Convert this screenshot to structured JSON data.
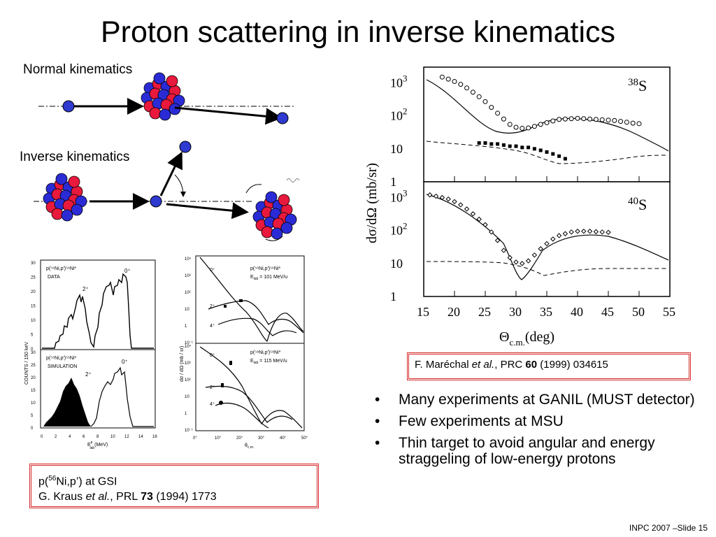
{
  "slide": {
    "title": "Proton scattering in inverse kinematics",
    "footer": "INPC 2007 –Slide 15"
  },
  "kinematics": {
    "normal_label": "Normal kinematics",
    "inverse_label": "Inverse kinematics",
    "colors": {
      "proton": "#e8193c",
      "neutron": "#2b2bd6",
      "projectile": "#2f3ad0"
    }
  },
  "gsi_figure": {
    "spectrum_top": {
      "reaction": "p(⁵⁶Ni,p′)⁵⁶Ni*",
      "tag": "DATA",
      "peaks": [
        "0⁺",
        "2⁺"
      ]
    },
    "spectrum_bottom": {
      "reaction": "p(⁵⁶Ni,p′)⁵⁶Ni*",
      "tag": "SIMULATION",
      "peaks": [
        "0⁺",
        "2⁺"
      ]
    },
    "y_label": "COUNTS / 150 keV",
    "x_label": "E",
    "x_label_sup": "p",
    "x_label_sub": "lab",
    "x_label_unit": "(MeV)",
    "y_ticks": [
      "30",
      "25",
      "20",
      "15",
      "10",
      "5",
      "0"
    ],
    "x_ticks": [
      "0",
      "2",
      "4",
      "6",
      "8",
      "10",
      "12",
      "14",
      "16"
    ],
    "ang_top": {
      "reaction": "p(⁵⁶Ni,p′)⁵⁶Ni*",
      "energy": "E",
      "energy_sub": "lab",
      "energy_val": " = 101 MeV/u",
      "states": [
        "0⁺",
        "2⁺",
        "4⁺"
      ]
    },
    "ang_bottom": {
      "reaction": "p(⁵⁸Ni,p′)⁵⁸Ni*",
      "energy": "E",
      "energy_sub": "lab",
      "energy_val": " = 115 MeV/u",
      "states": [
        "0⁺",
        "2⁺",
        "4⁺"
      ]
    },
    "ang_y_label": "dσ / dΩ  (mb / sr)",
    "ang_y_ticks": [
      "10⁴",
      "10³",
      "10²",
      "10",
      "1",
      "10⁻¹"
    ],
    "ang_x_ticks": [
      "0°",
      "10°",
      "20°",
      "30°",
      "40°",
      "50°"
    ],
    "ang_x_label": "θ",
    "ang_x_label_sub": "c.m."
  },
  "ganil_figure": {
    "panel_top_mass": "38",
    "panel_top_elem": "S",
    "panel_bottom_mass": "40",
    "panel_bottom_elem": "S",
    "y_label": "dσ/dΩ (mb/sr)",
    "y_ticks": [
      {
        "base": "10",
        "sup": "3"
      },
      {
        "base": "10",
        "sup": "2"
      },
      {
        "base": "10",
        "sup": ""
      },
      {
        "base": "1",
        "sup": ""
      }
    ],
    "x_ticks": [
      "15",
      "20",
      "25",
      "30",
      "35",
      "40",
      "45",
      "50",
      "55"
    ],
    "x_label": "Θ",
    "x_label_sub": "c.m.",
    "x_label_unit": "(deg)"
  },
  "refs": {
    "ganil": {
      "author": "F. Maréchal ",
      "etal": "et al.",
      "journal": ", PRC  ",
      "volume": "60",
      "rest": " (1999) 034615"
    },
    "gsi": {
      "line1_pre": "p(",
      "line1_sup": "56",
      "line1_post": "Ni,p’) at GSI",
      "author": "G. Kraus ",
      "etal": "et al.",
      "journal": ", PRL  ",
      "volume": "73",
      "rest": " (1994) 1773"
    }
  },
  "bullets": [
    "Many experiments at GANIL (MUST detector)",
    "Few experiments at MSU",
    "Thin target to avoid angular and energy straggeling of low-energy protons"
  ],
  "chart_data": [
    {
      "type": "scatter",
      "title": "38S",
      "xlabel": "Θc.m. (deg)",
      "ylabel": "dσ/dΩ (mb/sr)",
      "xlim": [
        15,
        55
      ],
      "ylim": [
        1,
        3000
      ],
      "log_y": true,
      "series": [
        {
          "x": [
            18,
            19,
            20,
            21,
            22,
            23,
            24,
            25,
            26,
            27,
            28,
            29,
            30,
            31,
            32,
            33,
            34,
            35,
            36,
            37,
            38,
            39,
            40,
            41,
            42,
            43,
            44,
            45,
            46,
            47,
            48,
            49,
            50
          ],
          "y": [
            1500,
            1300,
            1100,
            900,
            700,
            520,
            380,
            270,
            180,
            120,
            80,
            55,
            45,
            42,
            43,
            48,
            55,
            62,
            70,
            78,
            80,
            82,
            84,
            82,
            80,
            78,
            76,
            74,
            72,
            68,
            64,
            60,
            58
          ]
        },
        {
          "x": [
            24,
            25,
            26,
            27,
            28,
            29,
            30,
            31,
            32,
            33,
            34,
            35,
            36,
            37,
            38
          ],
          "y": [
            15,
            15,
            14,
            14,
            13,
            12,
            12,
            11,
            11,
            10,
            9,
            8,
            7,
            6,
            5
          ]
        }
      ]
    },
    {
      "type": "scatter",
      "title": "40S",
      "xlabel": "Θc.m. (deg)",
      "ylabel": "dσ/dΩ (mb/sr)",
      "xlim": [
        15,
        55
      ],
      "ylim": [
        1,
        3000
      ],
      "log_y": true,
      "series": [
        {
          "x": [
            16,
            17,
            18,
            19,
            20,
            21,
            22,
            23,
            24,
            25,
            26,
            27,
            28,
            29,
            30,
            31,
            32,
            33,
            34,
            35,
            36,
            37,
            38,
            39,
            40,
            41,
            42,
            43,
            44,
            45
          ],
          "y": [
            1200,
            1100,
            1000,
            900,
            750,
            600,
            450,
            320,
            220,
            150,
            90,
            50,
            25,
            15,
            11,
            10,
            12,
            18,
            28,
            40,
            55,
            70,
            80,
            90,
            95,
            95,
            95,
            92,
            90,
            88
          ]
        }
      ]
    }
  ]
}
